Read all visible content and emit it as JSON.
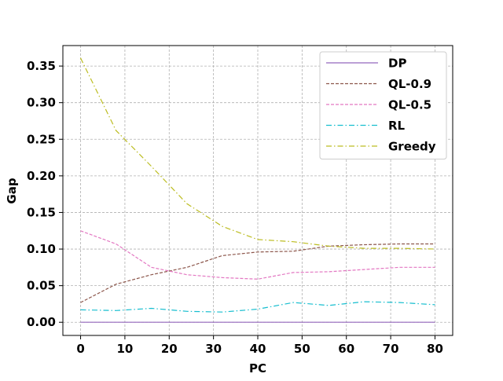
{
  "chart_data": {
    "type": "line",
    "xlabel": "PC",
    "ylabel": "Gap",
    "xlim": [
      -4,
      84
    ],
    "ylim": [
      -0.018,
      0.378
    ],
    "xticks": [
      0,
      10,
      20,
      30,
      40,
      50,
      60,
      70,
      80
    ],
    "yticks": [
      0.0,
      0.05,
      0.1,
      0.15,
      0.2,
      0.25,
      0.3,
      0.35
    ],
    "xtick_labels": [
      "0",
      "10",
      "20",
      "30",
      "40",
      "50",
      "60",
      "70",
      "80"
    ],
    "ytick_labels": [
      "0.00",
      "0.05",
      "0.10",
      "0.15",
      "0.20",
      "0.25",
      "0.30",
      "0.35"
    ],
    "grid": true,
    "legend_position": "top-right",
    "x": [
      0,
      8,
      16,
      24,
      32,
      40,
      48,
      56,
      64,
      72,
      80
    ],
    "series": [
      {
        "name": "DP",
        "color": "#9467bd",
        "dash": "solid",
        "values": [
          0,
          0,
          0,
          0,
          0,
          0,
          0,
          0,
          0,
          0,
          0
        ]
      },
      {
        "name": "QL-0.9",
        "color": "#8c564b",
        "dash": "dashed",
        "values": [
          0.027,
          0.052,
          0.065,
          0.075,
          0.091,
          0.096,
          0.097,
          0.104,
          0.106,
          0.107,
          0.107
        ]
      },
      {
        "name": "QL-0.5",
        "color": "#e377c2",
        "dash": "dashed",
        "values": [
          0.125,
          0.107,
          0.075,
          0.065,
          0.061,
          0.059,
          0.068,
          0.069,
          0.072,
          0.075,
          0.075
        ]
      },
      {
        "name": "RL",
        "color": "#17becf",
        "dash": "dashdot",
        "values": [
          0.017,
          0.016,
          0.019,
          0.015,
          0.014,
          0.018,
          0.027,
          0.023,
          0.028,
          0.027,
          0.024
        ]
      },
      {
        "name": "Greedy",
        "color": "#bcbd22",
        "dash": "dashdot",
        "values": [
          0.361,
          0.262,
          0.213,
          0.162,
          0.131,
          0.113,
          0.11,
          0.104,
          0.101,
          0.101,
          0.1
        ]
      }
    ]
  }
}
